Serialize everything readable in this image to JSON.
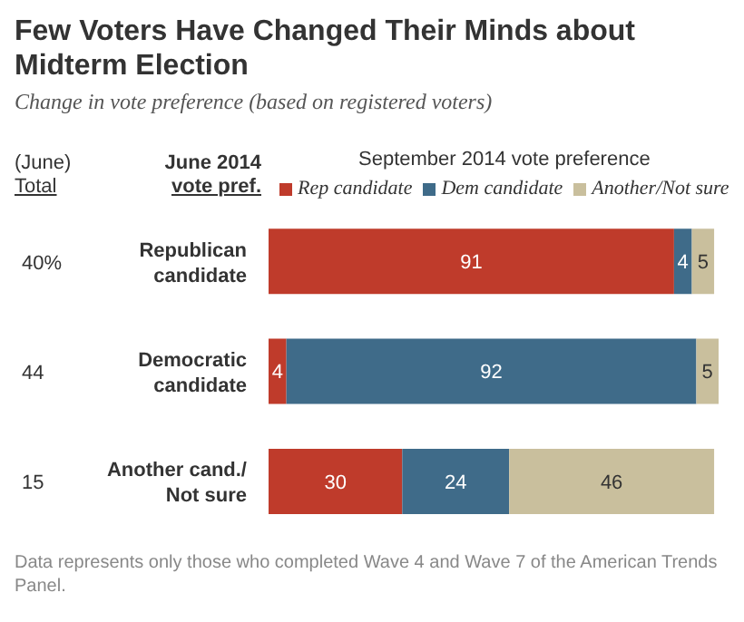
{
  "chart_data": {
    "type": "bar",
    "orientation": "horizontal",
    "stacked": true,
    "title": "Few Voters Have Changed Their Minds about Midterm Election",
    "subtitle": "Change in vote preference (based on registered voters)",
    "legend_title": "September 2014 vote preference",
    "legend": "top",
    "data_labels": true,
    "categories": [
      "Republican candidate",
      "Democratic candidate",
      "Another cand./ Not sure"
    ],
    "series": [
      {
        "name": "Rep candidate",
        "color": "#bf3b2b",
        "values": [
          91,
          4,
          30
        ]
      },
      {
        "name": "Dem candidate",
        "color": "#3f6b89",
        "values": [
          4,
          92,
          24
        ]
      },
      {
        "name": "Another/Not sure",
        "color": "#c9bf9d",
        "values": [
          5,
          5,
          46
        ]
      }
    ],
    "annotations": [
      "(June) Total",
      "June 2014 vote pref.",
      "40%",
      "44",
      "15",
      "Data represents only those who completed Wave 4 and Wave 7 of the American Trends Panel."
    ]
  }
}
